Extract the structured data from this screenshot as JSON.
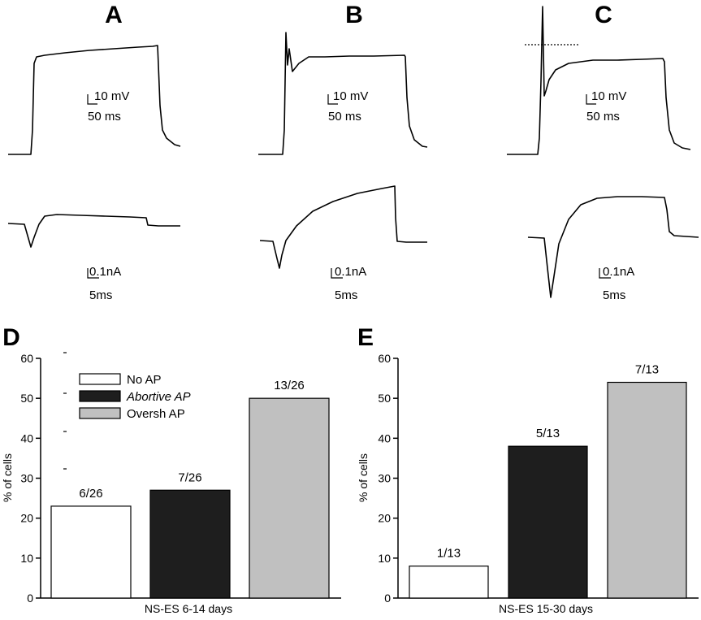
{
  "panels": {
    "A": {
      "label": "A",
      "v_scale": "10 mV",
      "t_scale_top": "50 ms",
      "i_scale": "0.1nA",
      "t_scale_bottom": "5ms"
    },
    "B": {
      "label": "B",
      "v_scale": "10 mV",
      "t_scale_top": "50 ms",
      "i_scale": "0.1nA",
      "t_scale_bottom": "5ms"
    },
    "C": {
      "label": "C",
      "v_scale": "10 mV",
      "t_scale_top": "50 ms",
      "i_scale": "0.1nA",
      "t_scale_bottom": "5ms"
    }
  },
  "legend": [
    {
      "label": "No AP",
      "color": "#ffffff"
    },
    {
      "label": "Abortive AP",
      "color": "#1e1e1e"
    },
    {
      "label": "Oversh AP",
      "color": "#c0c0c0"
    }
  ],
  "chart_data": [
    {
      "type": "bar",
      "panel_label": "D",
      "title": "",
      "xlabel": "NS-ES 6-14 days",
      "ylabel": "% of cells",
      "ylim": [
        0,
        60
      ],
      "yticks": [
        "0",
        "10",
        "20",
        "30",
        "40",
        "50",
        "60"
      ],
      "categories": [
        "No AP",
        "Abortive AP",
        "Oversh AP"
      ],
      "values": [
        23,
        27,
        50
      ],
      "data_labels": [
        "6/26",
        "7/26",
        "13/26"
      ],
      "colors": [
        "#ffffff",
        "#1e1e1e",
        "#c0c0c0"
      ],
      "legend_position": "top-left"
    },
    {
      "type": "bar",
      "panel_label": "E",
      "title": "",
      "xlabel": "NS-ES 15-30 days",
      "ylabel": "% of cells",
      "ylim": [
        0,
        60
      ],
      "yticks": [
        "0",
        "10",
        "20",
        "30",
        "40",
        "50",
        "60"
      ],
      "categories": [
        "No AP",
        "Abortive AP",
        "Oversh AP"
      ],
      "values": [
        8,
        38,
        54
      ],
      "data_labels": [
        "1/13",
        "5/13",
        "7/13"
      ],
      "colors": [
        "#ffffff",
        "#1e1e1e",
        "#c0c0c0"
      ]
    }
  ]
}
